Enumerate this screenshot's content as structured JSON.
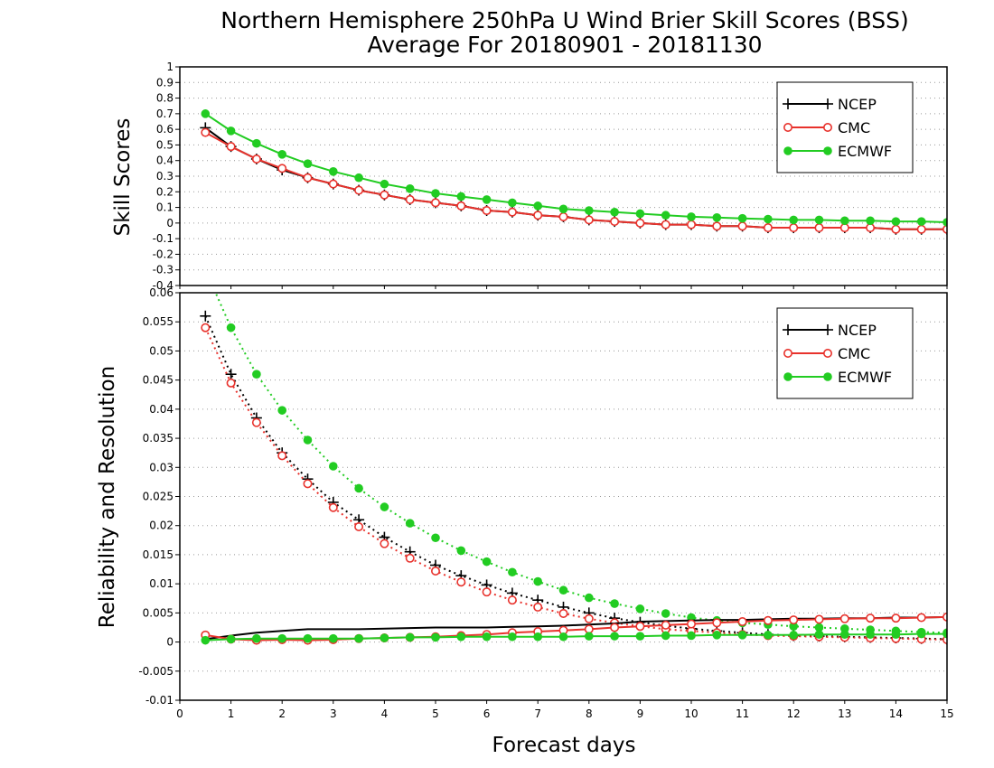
{
  "title_line1": "Northern Hemisphere 250hPa U Wind Brier Skill Scores (BSS)",
  "title_line2": "Average For 20180901 - 20181130",
  "xlabel": "Forecast days",
  "colors": {
    "NCEP": "#000000",
    "CMC": "#e8322c",
    "ECMWF": "#22cc22"
  },
  "chart_data": [
    {
      "type": "line",
      "ylabel": "Skill Scores",
      "xlim": [
        0,
        15
      ],
      "ylim": [
        -0.4,
        1
      ],
      "yticks": [
        "-0.4",
        "-0.3",
        "-0.2",
        "-0.1",
        "0",
        "0.1",
        "0.2",
        "0.3",
        "0.4",
        "0.5",
        "0.6",
        "0.7",
        "0.8",
        "0.9",
        "1"
      ],
      "grid": true,
      "legend_position": "top-right",
      "x": [
        0.5,
        1,
        1.5,
        2,
        2.5,
        3,
        3.5,
        4,
        4.5,
        5,
        5.5,
        6,
        6.5,
        7,
        7.5,
        8,
        8.5,
        9,
        9.5,
        10,
        10.5,
        11,
        11.5,
        12,
        12.5,
        13,
        13.5,
        14,
        14.5,
        15
      ],
      "series": [
        {
          "name": "NCEP",
          "marker": "plus",
          "style": "solid",
          "values": [
            0.61,
            0.49,
            0.41,
            0.34,
            0.29,
            0.25,
            0.21,
            0.18,
            0.15,
            0.13,
            0.11,
            0.08,
            0.07,
            0.05,
            0.04,
            0.02,
            0.01,
            0.0,
            -0.01,
            -0.01,
            -0.02,
            -0.02,
            -0.03,
            -0.03,
            -0.03,
            -0.03,
            -0.03,
            -0.04,
            -0.04,
            -0.04
          ]
        },
        {
          "name": "CMC",
          "marker": "open-circle",
          "style": "solid",
          "values": [
            0.58,
            0.49,
            0.41,
            0.35,
            0.29,
            0.25,
            0.21,
            0.18,
            0.15,
            0.13,
            0.11,
            0.08,
            0.07,
            0.05,
            0.04,
            0.02,
            0.01,
            0.0,
            -0.01,
            -0.01,
            -0.02,
            -0.02,
            -0.03,
            -0.03,
            -0.03,
            -0.03,
            -0.03,
            -0.04,
            -0.04,
            -0.04
          ]
        },
        {
          "name": "ECMWF",
          "marker": "filled-circle",
          "style": "solid",
          "values": [
            0.7,
            0.59,
            0.51,
            0.44,
            0.38,
            0.33,
            0.29,
            0.25,
            0.22,
            0.19,
            0.17,
            0.15,
            0.13,
            0.11,
            0.09,
            0.08,
            0.07,
            0.06,
            0.05,
            0.04,
            0.035,
            0.03,
            0.025,
            0.02,
            0.02,
            0.015,
            0.015,
            0.01,
            0.01,
            0.005
          ]
        }
      ]
    },
    {
      "type": "line",
      "ylabel": "Reliability and Resolution",
      "xlim": [
        0,
        15
      ],
      "ylim": [
        -0.01,
        0.06
      ],
      "yticks": [
        "-0.01",
        "-0.005",
        "0",
        "0.005",
        "0.01",
        "0.015",
        "0.02",
        "0.025",
        "0.03",
        "0.035",
        "0.04",
        "0.045",
        "0.05",
        "0.055",
        "0.06"
      ],
      "xticks": [
        "0",
        "1",
        "2",
        "3",
        "4",
        "5",
        "6",
        "7",
        "8",
        "9",
        "10",
        "11",
        "12",
        "13",
        "14",
        "15"
      ],
      "grid": true,
      "legend_position": "top-right",
      "x": [
        0.5,
        1,
        1.5,
        2,
        2.5,
        3,
        3.5,
        4,
        4.5,
        5,
        5.5,
        6,
        6.5,
        7,
        7.5,
        8,
        8.5,
        9,
        9.5,
        10,
        10.5,
        11,
        11.5,
        12,
        12.5,
        13,
        13.5,
        14,
        14.5,
        15
      ],
      "series": [
        {
          "name": "NCEP",
          "marker": "plus",
          "style": "dotted",
          "component": "reliability",
          "values": [
            0.056,
            0.046,
            0.0385,
            0.0325,
            0.028,
            0.024,
            0.021,
            0.018,
            0.0155,
            0.0132,
            0.0114,
            0.0098,
            0.0084,
            0.0072,
            0.006,
            0.005,
            0.0041,
            0.0034,
            0.0028,
            0.0023,
            0.0019,
            0.0016,
            0.0013,
            0.0011,
            0.001,
            0.0009,
            0.0008,
            0.0007,
            0.0006,
            0.0005
          ]
        },
        {
          "name": "CMC",
          "marker": "open-circle",
          "style": "dotted",
          "component": "reliability",
          "values": [
            0.054,
            0.0445,
            0.0377,
            0.032,
            0.0272,
            0.0231,
            0.0198,
            0.0169,
            0.0144,
            0.0122,
            0.0103,
            0.0086,
            0.0072,
            0.006,
            0.0049,
            0.004,
            0.0033,
            0.0027,
            0.0022,
            0.0019,
            0.0016,
            0.0013,
            0.0011,
            0.001,
            0.0009,
            0.0008,
            0.0007,
            0.0006,
            0.0005,
            0.0004
          ]
        },
        {
          "name": "ECMWF",
          "marker": "filled-circle",
          "style": "dotted",
          "component": "reliability",
          "values": [
            0.064,
            0.054,
            0.046,
            0.0398,
            0.0347,
            0.0302,
            0.0264,
            0.0232,
            0.0204,
            0.0179,
            0.0157,
            0.0138,
            0.012,
            0.0104,
            0.0089,
            0.0076,
            0.0066,
            0.0057,
            0.0049,
            0.0042,
            0.0037,
            0.0033,
            0.003,
            0.0027,
            0.0025,
            0.0023,
            0.0021,
            0.0019,
            0.0017,
            0.0016
          ]
        },
        {
          "name": "NCEP",
          "marker": "none",
          "style": "solid",
          "component": "resolution",
          "values": [
            0.0005,
            0.0011,
            0.0016,
            0.0019,
            0.0022,
            0.0022,
            0.0022,
            0.0023,
            0.0024,
            0.0025,
            0.0025,
            0.0025,
            0.0026,
            0.0027,
            0.0028,
            0.003,
            0.0032,
            0.0035,
            0.0036,
            0.0037,
            0.0038,
            0.0038,
            0.0039,
            0.004,
            0.004,
            0.0041,
            0.0041,
            0.0042,
            0.0042,
            0.0043
          ]
        },
        {
          "name": "CMC",
          "marker": "open-circle",
          "style": "solid",
          "component": "resolution",
          "values": [
            0.0012,
            0.0005,
            0.0003,
            0.0004,
            0.0003,
            0.0004,
            0.0006,
            0.0007,
            0.0008,
            0.0009,
            0.0011,
            0.0013,
            0.0016,
            0.0018,
            0.002,
            0.0022,
            0.0025,
            0.0027,
            0.0029,
            0.0031,
            0.0033,
            0.0035,
            0.0037,
            0.0038,
            0.0039,
            0.004,
            0.0041,
            0.0041,
            0.0042,
            0.0043
          ]
        },
        {
          "name": "ECMWF",
          "marker": "filled-circle",
          "style": "solid",
          "component": "resolution",
          "values": [
            0.0003,
            0.0005,
            0.0006,
            0.0006,
            0.0006,
            0.0006,
            0.0006,
            0.0007,
            0.0008,
            0.0008,
            0.0009,
            0.0009,
            0.0009,
            0.0009,
            0.0009,
            0.001,
            0.001,
            0.001,
            0.0011,
            0.0011,
            0.0012,
            0.0012,
            0.0012,
            0.0012,
            0.0013,
            0.0013,
            0.0013,
            0.0013,
            0.0014,
            0.0014
          ]
        }
      ]
    }
  ]
}
